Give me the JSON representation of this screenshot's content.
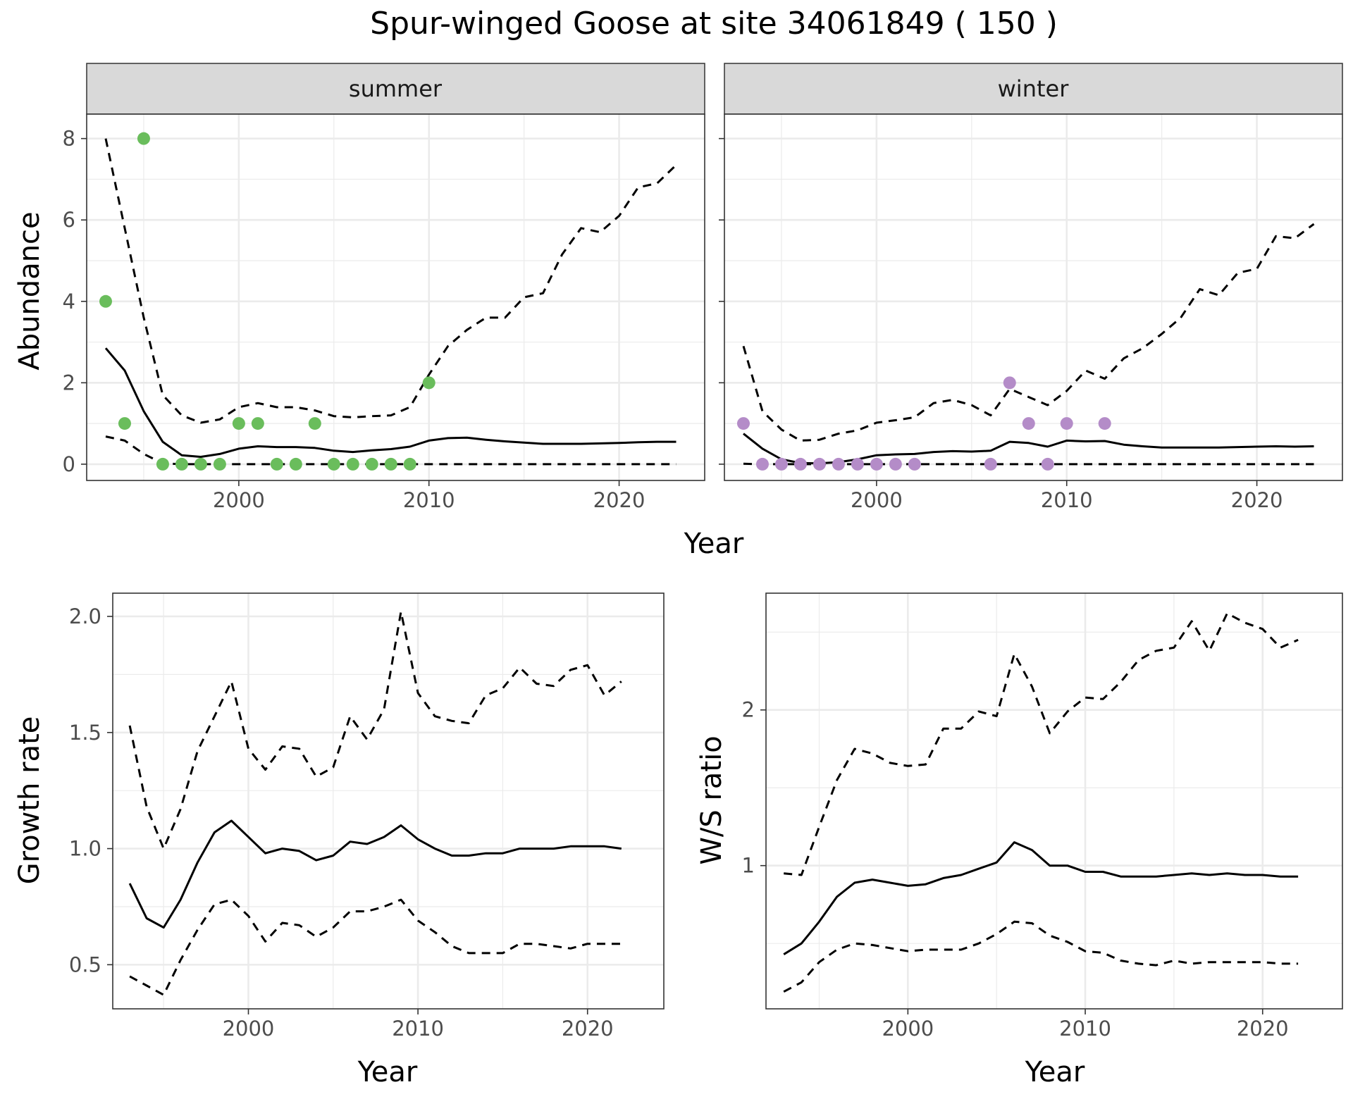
{
  "title": "Spur-winged Goose at site 34061849 ( 150 )",
  "colors": {
    "summer_points": "#6abd5c",
    "winter_points": "#b48cc8",
    "lines": "#000000",
    "strip_fill": "#d9d9d9",
    "grid": "#ebebeb"
  },
  "chart_data": [
    {
      "type": "line",
      "facet": "summer",
      "xlabel": "Year",
      "ylabel": "Abundance",
      "xlim": [
        1992,
        2024.5
      ],
      "ylim": [
        -0.4,
        8.6
      ],
      "xticks": [
        2000,
        2010,
        2020
      ],
      "yticks": [
        0,
        2,
        4,
        6,
        8
      ],
      "grid": true,
      "points": {
        "x": [
          1993,
          1994,
          1995,
          1996,
          1997,
          1998,
          1999,
          2000,
          2001,
          2002,
          2003,
          2004,
          2005,
          2006,
          2007,
          2008,
          2009,
          2010
        ],
        "y": [
          4,
          1,
          8,
          0,
          0,
          0,
          0,
          1,
          1,
          0,
          0,
          1,
          0,
          0,
          0,
          0,
          0,
          2
        ]
      },
      "x": [
        1993,
        1994,
        1995,
        1996,
        1997,
        1998,
        1999,
        2000,
        2001,
        2002,
        2003,
        2004,
        2005,
        2006,
        2007,
        2008,
        2009,
        2010,
        2011,
        2012,
        2013,
        2014,
        2015,
        2016,
        2017,
        2018,
        2019,
        2020,
        2021,
        2022,
        2023
      ],
      "series": [
        {
          "role": "estimate",
          "values": [
            2.85,
            2.3,
            1.3,
            0.55,
            0.22,
            0.18,
            0.25,
            0.38,
            0.44,
            0.42,
            0.42,
            0.4,
            0.33,
            0.3,
            0.34,
            0.37,
            0.43,
            0.58,
            0.64,
            0.65,
            0.6,
            0.56,
            0.53,
            0.5,
            0.5,
            0.5,
            0.51,
            0.52,
            0.54,
            0.55,
            0.55
          ]
        },
        {
          "role": "upper",
          "values": [
            8.0,
            5.8,
            3.6,
            1.7,
            1.2,
            1.02,
            1.1,
            1.4,
            1.5,
            1.4,
            1.4,
            1.32,
            1.18,
            1.15,
            1.18,
            1.2,
            1.4,
            2.2,
            2.9,
            3.3,
            3.6,
            3.6,
            4.1,
            4.2,
            5.15,
            5.8,
            5.7,
            6.1,
            6.8,
            6.9,
            7.35
          ]
        },
        {
          "role": "lower",
          "values": [
            0.68,
            0.58,
            0.25,
            0.02,
            0,
            0,
            0,
            0,
            0,
            0,
            0,
            0,
            0,
            0,
            0,
            0,
            0,
            0,
            0,
            0,
            0,
            0,
            0,
            0,
            0,
            0,
            0,
            0,
            0,
            0,
            0
          ]
        }
      ]
    },
    {
      "type": "line",
      "facet": "winter",
      "xlabel": "Year",
      "ylabel": "Abundance",
      "xlim": [
        1992,
        2024.5
      ],
      "ylim": [
        -0.4,
        8.6
      ],
      "xticks": [
        2000,
        2010,
        2020
      ],
      "yticks": [
        0,
        2,
        4,
        6,
        8
      ],
      "grid": true,
      "points": {
        "x": [
          1993,
          1994,
          1995,
          1996,
          1997,
          1998,
          1999,
          2000,
          2001,
          2002,
          2006,
          2007,
          2008,
          2009,
          2010,
          2012
        ],
        "y": [
          1,
          0,
          0,
          0,
          0,
          0,
          0,
          0,
          0,
          0,
          0,
          2,
          1,
          0,
          1,
          1
        ]
      },
      "x": [
        1993,
        1994,
        1995,
        1996,
        1997,
        1998,
        1999,
        2000,
        2001,
        2002,
        2003,
        2004,
        2005,
        2006,
        2007,
        2008,
        2009,
        2010,
        2011,
        2012,
        2013,
        2014,
        2015,
        2016,
        2017,
        2018,
        2019,
        2020,
        2021,
        2022,
        2023
      ],
      "series": [
        {
          "role": "estimate",
          "values": [
            0.75,
            0.38,
            0.12,
            0.03,
            0.02,
            0.05,
            0.12,
            0.22,
            0.24,
            0.25,
            0.3,
            0.32,
            0.31,
            0.33,
            0.55,
            0.52,
            0.43,
            0.58,
            0.56,
            0.57,
            0.48,
            0.44,
            0.41,
            0.41,
            0.41,
            0.41,
            0.42,
            0.43,
            0.44,
            0.43,
            0.44
          ]
        },
        {
          "role": "upper",
          "values": [
            2.9,
            1.3,
            0.85,
            0.58,
            0.6,
            0.75,
            0.83,
            1.02,
            1.08,
            1.15,
            1.5,
            1.58,
            1.45,
            1.2,
            1.85,
            1.65,
            1.45,
            1.8,
            2.3,
            2.1,
            2.6,
            2.85,
            3.2,
            3.6,
            4.3,
            4.15,
            4.7,
            4.8,
            5.6,
            5.55,
            5.9
          ]
        },
        {
          "role": "lower",
          "values": [
            0.01,
            0,
            0,
            0,
            0,
            0,
            0,
            0,
            0,
            0,
            0,
            0,
            0,
            0,
            0,
            0,
            0,
            0,
            0,
            0,
            0,
            0,
            0,
            0,
            0,
            0,
            0,
            0,
            0,
            0,
            0
          ]
        }
      ]
    },
    {
      "type": "line",
      "xlabel": "Year",
      "ylabel": "Growth rate",
      "xlim": [
        1992,
        2024.5
      ],
      "ylim": [
        0.31,
        2.1
      ],
      "xticks": [
        2000,
        2010,
        2020
      ],
      "yticks": [
        0.5,
        1.0,
        1.5,
        2.0
      ],
      "ytick_labels": [
        "0.5",
        "1.0",
        "1.5",
        "2.0"
      ],
      "grid": true,
      "x": [
        1993,
        1994,
        1995,
        1996,
        1997,
        1998,
        1999,
        2000,
        2001,
        2002,
        2003,
        2004,
        2005,
        2006,
        2007,
        2008,
        2009,
        2010,
        2011,
        2012,
        2013,
        2014,
        2015,
        2016,
        2017,
        2018,
        2019,
        2020,
        2021,
        2022
      ],
      "series": [
        {
          "role": "estimate",
          "values": [
            0.85,
            0.7,
            0.66,
            0.78,
            0.94,
            1.07,
            1.12,
            1.05,
            0.98,
            1.0,
            0.99,
            0.95,
            0.97,
            1.03,
            1.02,
            1.05,
            1.1,
            1.04,
            1.0,
            0.97,
            0.97,
            0.98,
            0.98,
            1.0,
            1.0,
            1.0,
            1.01,
            1.01,
            1.01,
            1.0
          ]
        },
        {
          "role": "upper",
          "values": [
            1.53,
            1.18,
            1.0,
            1.17,
            1.42,
            1.57,
            1.72,
            1.43,
            1.34,
            1.44,
            1.43,
            1.31,
            1.35,
            1.57,
            1.47,
            1.6,
            2.02,
            1.67,
            1.57,
            1.55,
            1.54,
            1.66,
            1.69,
            1.78,
            1.71,
            1.7,
            1.77,
            1.79,
            1.66,
            1.72
          ]
        },
        {
          "role": "lower",
          "values": [
            0.45,
            0.41,
            0.37,
            0.52,
            0.65,
            0.76,
            0.78,
            0.71,
            0.6,
            0.68,
            0.67,
            0.62,
            0.66,
            0.73,
            0.73,
            0.75,
            0.78,
            0.69,
            0.64,
            0.58,
            0.55,
            0.55,
            0.55,
            0.59,
            0.59,
            0.58,
            0.57,
            0.59,
            0.59,
            0.59
          ]
        }
      ]
    },
    {
      "type": "line",
      "xlabel": "Year",
      "ylabel": "W/S ratio",
      "xlim": [
        1992,
        2024.5
      ],
      "ylim": [
        0.08,
        2.75
      ],
      "xticks": [
        2000,
        2010,
        2020
      ],
      "yticks": [
        1,
        2
      ],
      "grid": true,
      "x": [
        1993,
        1994,
        1995,
        1996,
        1997,
        1998,
        1999,
        2000,
        2001,
        2002,
        2003,
        2004,
        2005,
        2006,
        2007,
        2008,
        2009,
        2010,
        2011,
        2012,
        2013,
        2014,
        2015,
        2016,
        2017,
        2018,
        2019,
        2020,
        2021,
        2022
      ],
      "series": [
        {
          "role": "estimate",
          "values": [
            0.43,
            0.5,
            0.64,
            0.8,
            0.89,
            0.91,
            0.89,
            0.87,
            0.88,
            0.92,
            0.94,
            0.98,
            1.02,
            1.15,
            1.1,
            1.0,
            1.0,
            0.96,
            0.96,
            0.93,
            0.93,
            0.93,
            0.94,
            0.95,
            0.94,
            0.95,
            0.94,
            0.94,
            0.93,
            0.93
          ]
        },
        {
          "role": "upper",
          "values": [
            0.95,
            0.94,
            1.25,
            1.55,
            1.75,
            1.72,
            1.66,
            1.64,
            1.65,
            1.88,
            1.88,
            1.99,
            1.96,
            2.36,
            2.15,
            1.85,
            1.99,
            2.08,
            2.07,
            2.18,
            2.32,
            2.38,
            2.4,
            2.57,
            2.38,
            2.62,
            2.56,
            2.52,
            2.4,
            2.45
          ]
        },
        {
          "role": "lower",
          "values": [
            0.19,
            0.25,
            0.38,
            0.46,
            0.5,
            0.49,
            0.47,
            0.45,
            0.46,
            0.46,
            0.46,
            0.5,
            0.56,
            0.64,
            0.63,
            0.55,
            0.51,
            0.45,
            0.44,
            0.39,
            0.37,
            0.36,
            0.39,
            0.37,
            0.38,
            0.38,
            0.38,
            0.38,
            0.37,
            0.37
          ]
        }
      ]
    }
  ]
}
